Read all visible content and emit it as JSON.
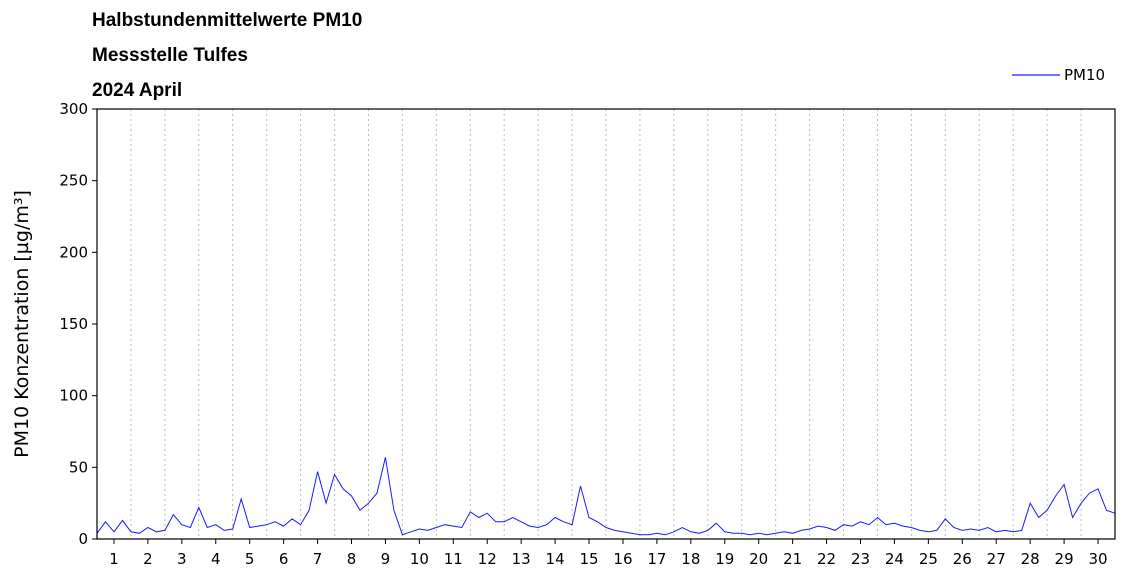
{
  "chart_data": {
    "type": "line",
    "title": [
      "Halbstundenmittelwerte PM10",
      "Messstelle Tulfes",
      "2024 April"
    ],
    "ylabel": "PM10 Konzentration [µg/m³]",
    "x": [
      0,
      0.25,
      0.5,
      0.75,
      1,
      1.25,
      1.5,
      1.75,
      2,
      2.25,
      2.5,
      2.75,
      3,
      3.25,
      3.5,
      3.75,
      4,
      4.25,
      4.5,
      4.75,
      5,
      5.25,
      5.5,
      5.75,
      6,
      6.25,
      6.5,
      6.75,
      7,
      7.25,
      7.5,
      7.75,
      8,
      8.25,
      8.5,
      8.75,
      9,
      9.25,
      9.5,
      9.75,
      10,
      10.25,
      10.5,
      10.75,
      11,
      11.25,
      11.5,
      11.75,
      12,
      12.25,
      12.5,
      12.75,
      13,
      13.25,
      13.5,
      13.75,
      14,
      14.25,
      14.5,
      14.75,
      15,
      15.25,
      15.5,
      15.75,
      16,
      16.25,
      16.5,
      16.75,
      17,
      17.25,
      17.5,
      17.75,
      18,
      18.25,
      18.5,
      18.75,
      19,
      19.25,
      19.5,
      19.75,
      20,
      20.25,
      20.5,
      20.75,
      21,
      21.25,
      21.5,
      21.75,
      22,
      22.25,
      22.5,
      22.75,
      23,
      23.25,
      23.5,
      23.75,
      24,
      24.25,
      24.5,
      24.75,
      25,
      25.25,
      25.5,
      25.75,
      26,
      26.25,
      26.5,
      26.75,
      27,
      27.25,
      27.5,
      27.75,
      28,
      28.25,
      28.5,
      28.75,
      29,
      29.25,
      29.5,
      29.75,
      30
    ],
    "series": [
      {
        "name": "PM10",
        "color": "#1a1aff",
        "values": [
          4,
          12,
          5,
          13,
          5,
          4,
          8,
          5,
          6,
          17,
          10,
          8,
          22,
          8,
          10,
          6,
          7,
          28,
          8,
          9,
          10,
          12,
          9,
          14,
          10,
          20,
          47,
          25,
          45,
          35,
          30,
          20,
          25,
          32,
          57,
          20,
          3,
          5,
          7,
          6,
          8,
          10,
          9,
          8,
          19,
          15,
          18,
          12,
          12,
          15,
          12,
          9,
          8,
          10,
          15,
          12,
          10,
          37,
          15,
          12,
          8,
          6,
          5,
          4,
          3,
          3,
          4,
          3,
          5,
          8,
          5,
          4,
          6,
          11,
          5,
          4,
          4,
          3,
          4,
          3,
          4,
          5,
          4,
          6,
          7,
          9,
          8,
          6,
          10,
          9,
          12,
          10,
          15,
          10,
          11,
          9,
          8,
          6,
          5,
          6,
          14,
          8,
          6,
          7,
          6,
          8,
          5,
          6,
          5,
          6,
          25,
          15,
          20,
          30,
          38,
          15,
          25,
          32,
          35,
          20,
          18
        ]
      }
    ],
    "xlim": [
      0,
      30
    ],
    "xticks": [
      {
        "value": 0.5,
        "label": "1"
      },
      {
        "value": 1.5,
        "label": "2"
      },
      {
        "value": 2.5,
        "label": "3"
      },
      {
        "value": 3.5,
        "label": "4"
      },
      {
        "value": 4.5,
        "label": "5"
      },
      {
        "value": 5.5,
        "label": "6"
      },
      {
        "value": 6.5,
        "label": "7"
      },
      {
        "value": 7.5,
        "label": "8"
      },
      {
        "value": 8.5,
        "label": "9"
      },
      {
        "value": 9.5,
        "label": "10"
      },
      {
        "value": 10.5,
        "label": "11"
      },
      {
        "value": 11.5,
        "label": "12"
      },
      {
        "value": 12.5,
        "label": "13"
      },
      {
        "value": 13.5,
        "label": "14"
      },
      {
        "value": 14.5,
        "label": "15"
      },
      {
        "value": 15.5,
        "label": "16"
      },
      {
        "value": 16.5,
        "label": "17"
      },
      {
        "value": 17.5,
        "label": "18"
      },
      {
        "value": 18.5,
        "label": "19"
      },
      {
        "value": 19.5,
        "label": "20"
      },
      {
        "value": 20.5,
        "label": "21"
      },
      {
        "value": 21.5,
        "label": "22"
      },
      {
        "value": 22.5,
        "label": "23"
      },
      {
        "value": 23.5,
        "label": "24"
      },
      {
        "value": 24.5,
        "label": "25"
      },
      {
        "value": 25.5,
        "label": "26"
      },
      {
        "value": 26.5,
        "label": "27"
      },
      {
        "value": 27.5,
        "label": "28"
      },
      {
        "value": 28.5,
        "label": "29"
      },
      {
        "value": 29.5,
        "label": "30"
      }
    ],
    "xgrid": [
      1,
      2,
      3,
      4,
      5,
      6,
      7,
      8,
      9,
      10,
      11,
      12,
      13,
      14,
      15,
      16,
      17,
      18,
      19,
      20,
      21,
      22,
      23,
      24,
      25,
      26,
      27,
      28,
      29
    ],
    "ylim": [
      0,
      300
    ],
    "yticks": [
      0,
      50,
      100,
      150,
      200,
      250,
      300
    ],
    "legend": "top-right"
  }
}
